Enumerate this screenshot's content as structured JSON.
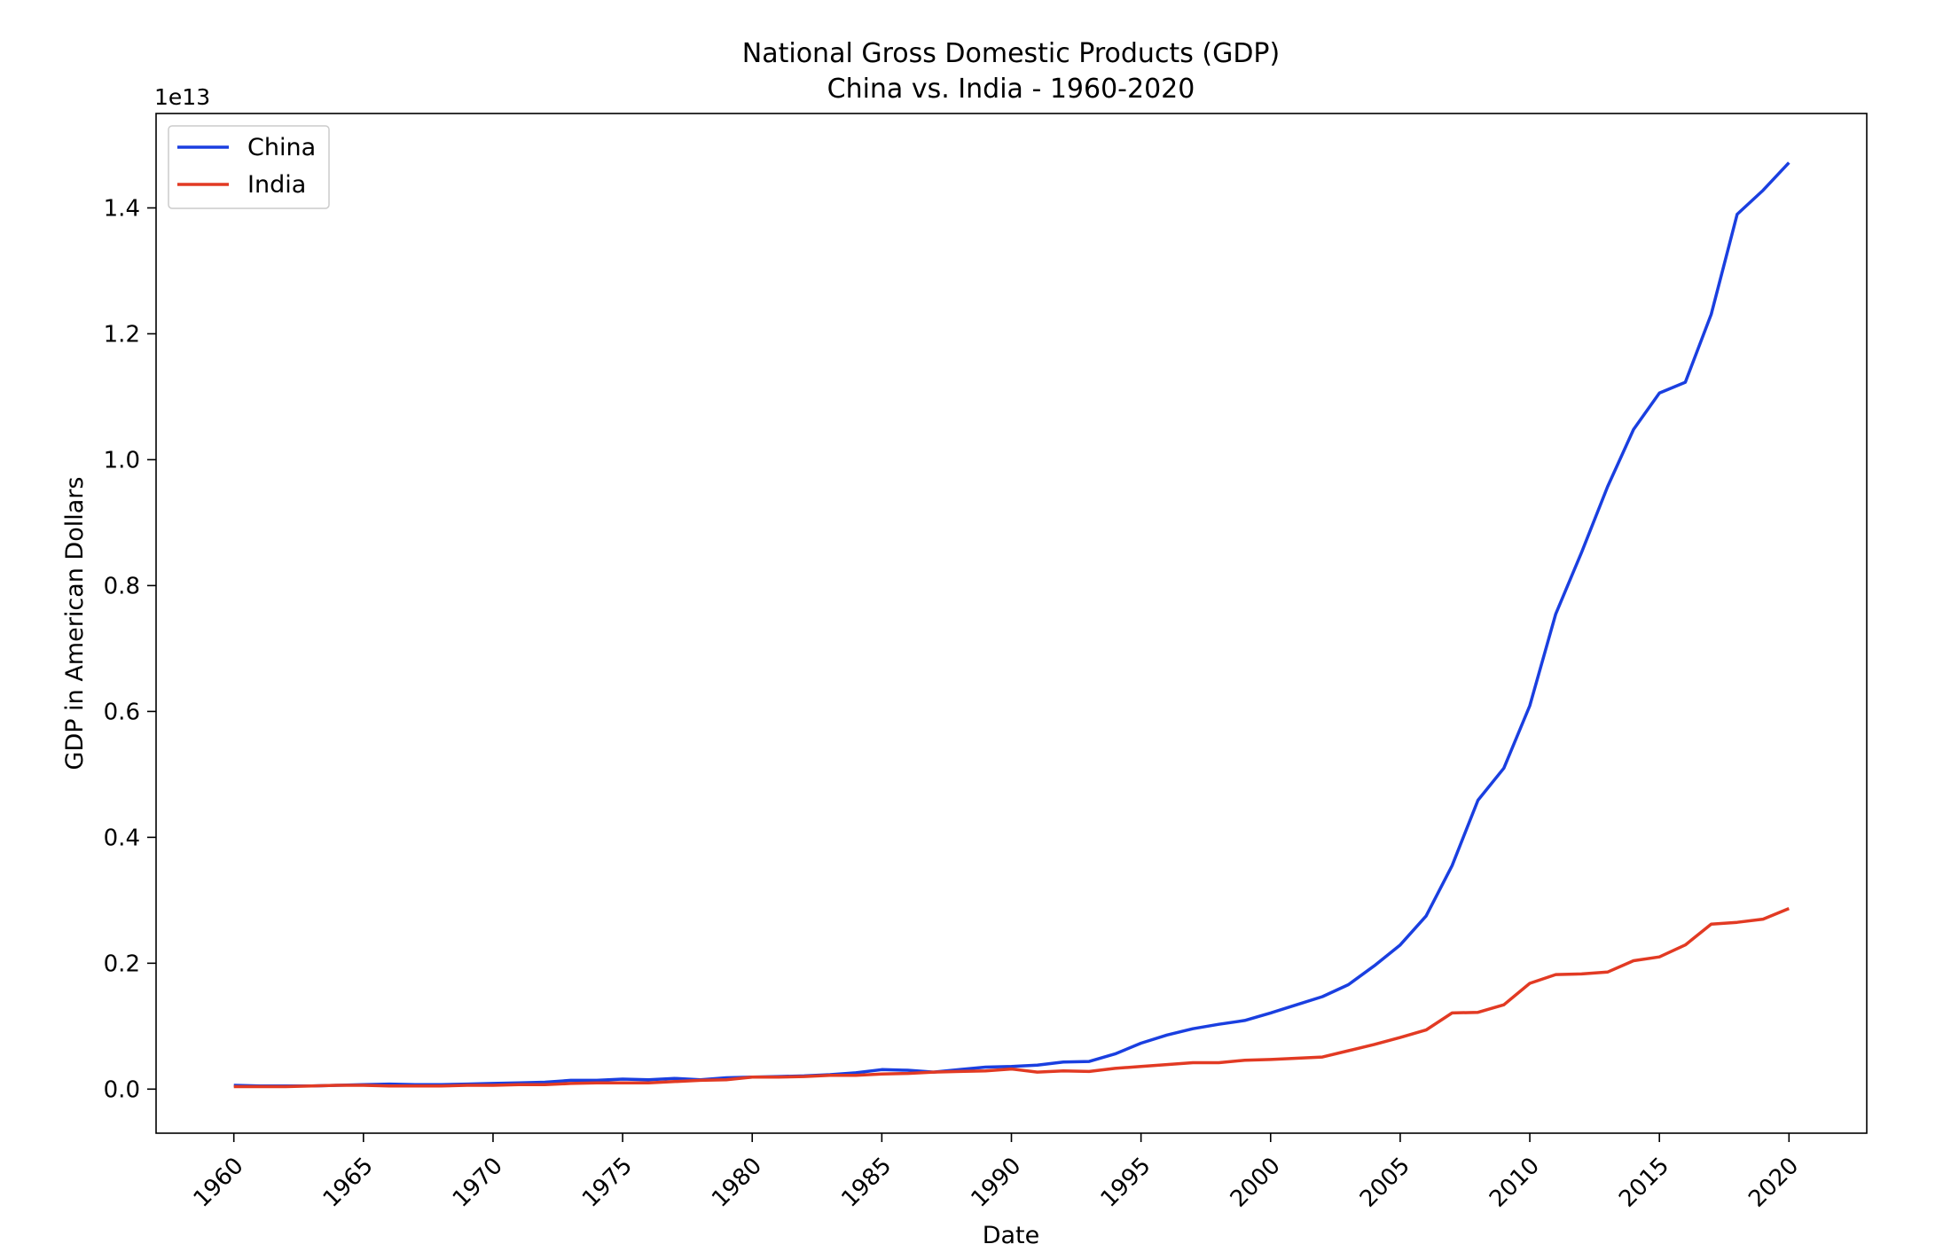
{
  "chart_data": {
    "type": "line",
    "title": "National Gross Domestic Products (GDP)",
    "subtitle": "China vs. India - 1960-2020",
    "xlabel": "Date",
    "ylabel": "GDP in American Dollars",
    "y_offset_label": "1e13",
    "y_multiplier": 10000000000000,
    "xlim": [
      1957,
      2023
    ],
    "ylim": [
      -0.07,
      1.55
    ],
    "x_ticks": [
      1960,
      1965,
      1970,
      1975,
      1980,
      1985,
      1990,
      1995,
      2000,
      2005,
      2010,
      2015,
      2020
    ],
    "y_ticks": [
      0.0,
      0.2,
      0.4,
      0.6,
      0.8,
      1.0,
      1.2,
      1.4
    ],
    "y_tick_labels": [
      "0.0",
      "0.2",
      "0.4",
      "0.6",
      "0.8",
      "1.0",
      "1.2",
      "1.4"
    ],
    "grid": false,
    "legend_position": "top-left",
    "label_color": "#1f3fd6",
    "x": [
      1960,
      1961,
      1962,
      1963,
      1964,
      1965,
      1966,
      1967,
      1968,
      1969,
      1970,
      1971,
      1972,
      1973,
      1974,
      1975,
      1976,
      1977,
      1978,
      1979,
      1980,
      1981,
      1982,
      1983,
      1984,
      1985,
      1986,
      1987,
      1988,
      1989,
      1990,
      1991,
      1992,
      1993,
      1994,
      1995,
      1996,
      1997,
      1998,
      1999,
      2000,
      2001,
      2002,
      2003,
      2004,
      2005,
      2006,
      2007,
      2008,
      2009,
      2010,
      2011,
      2012,
      2013,
      2014,
      2015,
      2016,
      2017,
      2018,
      2019,
      2020
    ],
    "series": [
      {
        "name": "China",
        "color": "#1a3fe0",
        "values": [
          0.006,
          0.005,
          0.005,
          0.005,
          0.006,
          0.007,
          0.008,
          0.007,
          0.007,
          0.008,
          0.009,
          0.01,
          0.011,
          0.014,
          0.014,
          0.016,
          0.015,
          0.017,
          0.015,
          0.018,
          0.019,
          0.02,
          0.021,
          0.023,
          0.026,
          0.031,
          0.03,
          0.027,
          0.031,
          0.035,
          0.036,
          0.038,
          0.043,
          0.044,
          0.056,
          0.073,
          0.086,
          0.096,
          0.103,
          0.109,
          0.121,
          0.134,
          0.147,
          0.166,
          0.196,
          0.229,
          0.275,
          0.355,
          0.459,
          0.51,
          0.609,
          0.755,
          0.853,
          0.957,
          1.048,
          1.106,
          1.123,
          1.231,
          1.39,
          1.428,
          1.472
        ]
      },
      {
        "name": "India",
        "color": "#e23a23",
        "values": [
          0.004,
          0.004,
          0.004,
          0.005,
          0.006,
          0.006,
          0.005,
          0.005,
          0.005,
          0.006,
          0.006,
          0.007,
          0.007,
          0.009,
          0.01,
          0.01,
          0.01,
          0.012,
          0.014,
          0.015,
          0.019,
          0.019,
          0.02,
          0.022,
          0.022,
          0.024,
          0.025,
          0.027,
          0.028,
          0.029,
          0.032,
          0.027,
          0.029,
          0.028,
          0.033,
          0.036,
          0.039,
          0.042,
          0.042,
          0.046,
          0.047,
          0.049,
          0.051,
          0.061,
          0.071,
          0.082,
          0.094,
          0.121,
          0.122,
          0.134,
          0.168,
          0.182,
          0.183,
          0.186,
          0.204,
          0.21,
          0.229,
          0.262,
          0.265,
          0.27,
          0.287
        ]
      }
    ]
  }
}
